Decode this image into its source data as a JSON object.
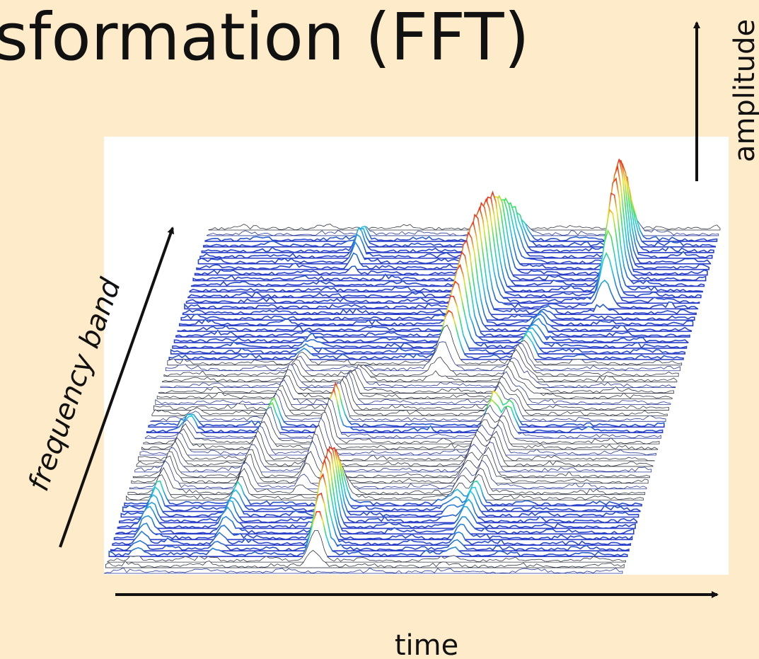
{
  "slide": {
    "title": "sformation (FFT)",
    "amplitude_label": "amplitude",
    "frequency_label": "frequency band",
    "time_label": "time"
  }
}
